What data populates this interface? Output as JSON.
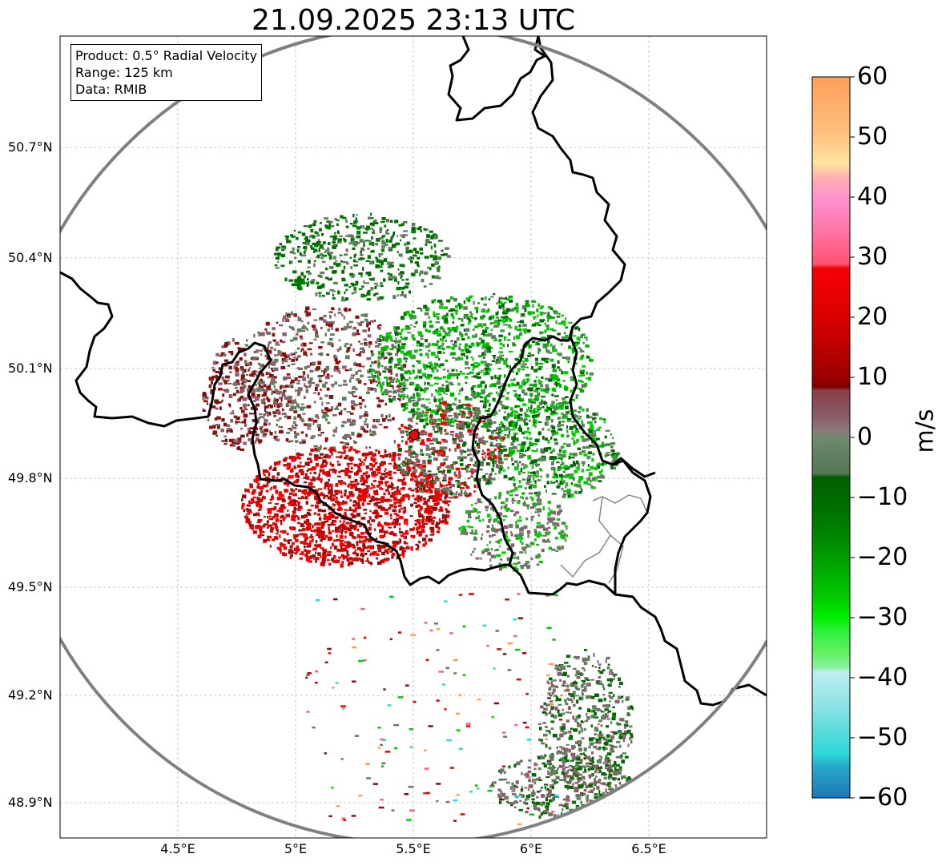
{
  "title": "21.09.2025 23:13 UTC",
  "info": {
    "product": "Product: 0.5° Radial Velocity",
    "range": "Range: 125 km",
    "source": "Data: RMIB"
  },
  "map": {
    "lon_range": [
      4.0,
      7.0
    ],
    "lat_range": [
      48.8,
      51.0
    ],
    "radar_site": {
      "lon": 5.5,
      "lat": 49.915
    },
    "lat_ticks": [
      "50.7°N",
      "50.4°N",
      "50.1°N",
      "49.8°N",
      "49.5°N",
      "49.2°N",
      "48.9°N"
    ],
    "lon_ticks": [
      "4.5°E",
      "5°E",
      "5.5°E",
      "6°E",
      "6.5°E"
    ]
  },
  "colorbar": {
    "unit": "m/s",
    "ticks": [
      "60",
      "50",
      "40",
      "30",
      "20",
      "10",
      "0",
      "−10",
      "−20",
      "−30",
      "−40",
      "−50",
      "−60"
    ],
    "range": [
      -60,
      60
    ],
    "colors": {
      "orange": "#ff9f5a",
      "pink": "#ff5f8a",
      "red": "#ee0000",
      "maroon": "#8a1010",
      "mauve": "#8b5f6a",
      "gray_green": "#5f7f5f",
      "dark_green": "#006a00",
      "green": "#00cc00",
      "light_green": "#8af08a",
      "cyan": "#2ad8d8",
      "blue": "#1f77b4"
    }
  }
}
